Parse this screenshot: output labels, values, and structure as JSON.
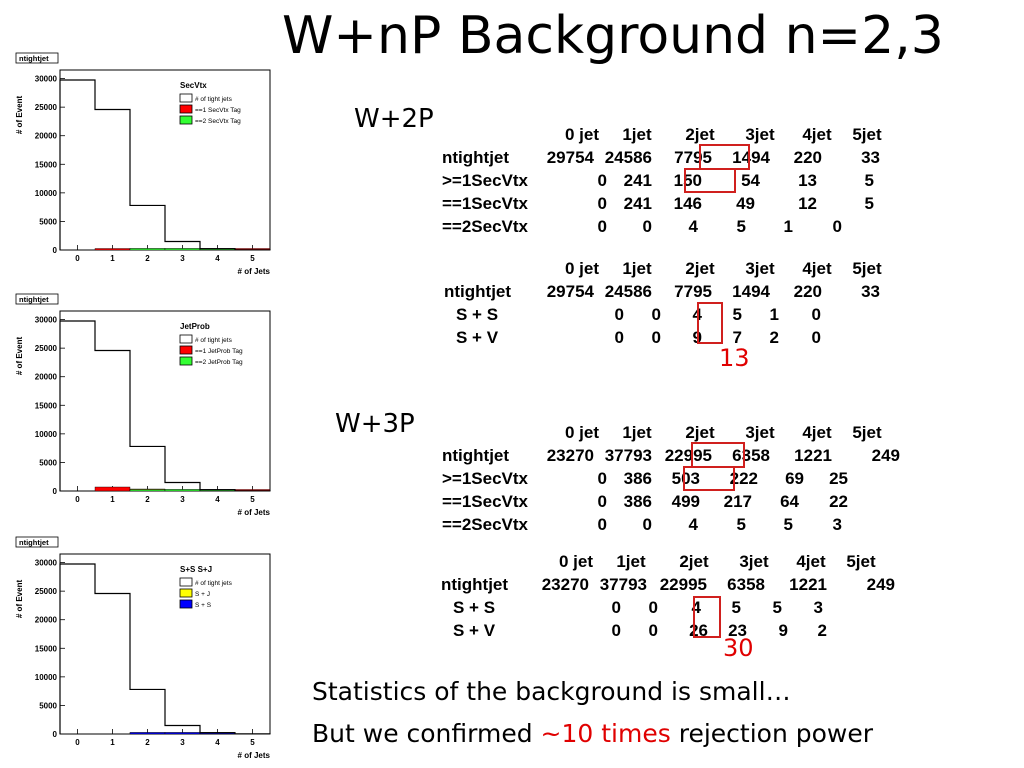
{
  "title": "W+nP Background n=2,3",
  "w2p": {
    "label": "W+2P",
    "table1": {
      "headers": [
        "0 jet",
        "1jet",
        "2jet",
        "3jet",
        "4jet",
        "5jet"
      ],
      "rows": [
        {
          "label": "ntightjet",
          "values": [
            "29754",
            "24586",
            "7795",
            "1494",
            "220",
            "33"
          ]
        },
        {
          "label": ">=1SecVtx",
          "values": [
            "0",
            "241",
            "150",
            "54",
            "13",
            "5"
          ]
        },
        {
          "label": "==1SecVtx",
          "values": [
            "0",
            "241",
            "146",
            "49",
            "12",
            "5"
          ]
        },
        {
          "label": "==2SecVtx",
          "values": [
            "0",
            "0",
            "4",
            "5",
            "1",
            "0"
          ]
        }
      ]
    },
    "table2": {
      "headers": [
        "0 jet",
        "1jet",
        "2jet",
        "3jet",
        "4jet",
        "5jet"
      ],
      "rows": [
        {
          "label": "ntightjet",
          "values": [
            "29754",
            "24586",
            "7795",
            "1494",
            "220",
            "33"
          ]
        },
        {
          "label": "S + S",
          "values": [
            "0",
            "0",
            "4",
            "5",
            "1",
            "0"
          ]
        },
        {
          "label": "S  + V",
          "values": [
            "0",
            "0",
            "9",
            "7",
            "2",
            "0"
          ]
        }
      ]
    },
    "sum_note": "13"
  },
  "w3p": {
    "label": "W+3P",
    "table1": {
      "headers": [
        "0 jet",
        "1jet",
        "2jet",
        "3jet",
        "4jet",
        "5jet"
      ],
      "rows": [
        {
          "label": "ntightjet",
          "values": [
            "23270",
            "37793",
            "22995",
            "6358",
            "1221",
            "249"
          ]
        },
        {
          "label": ">=1SecVtx",
          "values": [
            "0",
            "386",
            "503",
            "222",
            "69",
            "25"
          ]
        },
        {
          "label": "==1SecVtx",
          "values": [
            "0",
            "386",
            "499",
            "217",
            "64",
            "22"
          ]
        },
        {
          "label": "==2SecVtx",
          "values": [
            "0",
            "0",
            "4",
            "5",
            "5",
            "3"
          ]
        }
      ]
    },
    "table2": {
      "headers": [
        "0 jet",
        "1jet",
        "2jet",
        "3jet",
        "4jet",
        "5jet"
      ],
      "rows": [
        {
          "label": "ntightjet",
          "values": [
            "23270",
            "37793",
            "22995",
            "6358",
            "1221",
            "249"
          ]
        },
        {
          "label": "S + S",
          "values": [
            "0",
            "0",
            "4",
            "5",
            "5",
            "3"
          ]
        },
        {
          "label": "S  + V",
          "values": [
            "0",
            "0",
            "26",
            "23",
            "9",
            "2"
          ]
        }
      ]
    },
    "sum_note": "30"
  },
  "footer": {
    "line1": "Statistics of the background is small…",
    "line2_pre": "But we confirmed ",
    "line2_highlight": "~10 times",
    "line2_post": " rejection power"
  },
  "colors": {
    "highlight_red": "#e00000",
    "tag1_red": "#ff0000",
    "tag2_green": "#33ff33",
    "sj_yellow": "#ffff00",
    "ss_blue": "#0000ff"
  },
  "chart_data": [
    {
      "type": "bar",
      "hist_tag": "ntightjet",
      "legend_title": "SecVtx",
      "xlabel": "# of Jets",
      "ylabel": "# of Event",
      "categories": [
        "0",
        "1",
        "2",
        "3",
        "4",
        "5"
      ],
      "yticks": [
        "0",
        "5000",
        "10000",
        "15000",
        "20000",
        "25000",
        "30000"
      ],
      "ylim": [
        0,
        31500
      ],
      "series": [
        {
          "name": "# of tight jets",
          "values": [
            29754,
            24586,
            7795,
            1494,
            220,
            33
          ],
          "color": "#ffffff"
        },
        {
          "name": "==1 SecVtx Tag",
          "values": [
            0,
            241,
            146,
            49,
            12,
            5
          ],
          "color": "#ff0000"
        },
        {
          "name": "==2 SecVtx Tag",
          "values": [
            0,
            0,
            4,
            5,
            1,
            0
          ],
          "color": "#33ff33"
        }
      ]
    },
    {
      "type": "bar",
      "hist_tag": "ntightjet",
      "legend_title": "JetProb",
      "xlabel": "# of Jets",
      "ylabel": "# of Event",
      "categories": [
        "0",
        "1",
        "2",
        "3",
        "4",
        "5"
      ],
      "yticks": [
        "0",
        "5000",
        "10000",
        "15000",
        "20000",
        "25000",
        "30000"
      ],
      "ylim": [
        0,
        31500
      ],
      "series": [
        {
          "name": "# of tight jets",
          "values": [
            29754,
            24586,
            7795,
            1494,
            220,
            33
          ],
          "color": "#ffffff"
        },
        {
          "name": "==1 JetProb Tag",
          "values": [
            0,
            700,
            350,
            80,
            15,
            5
          ],
          "color": "#ff0000"
        },
        {
          "name": "==2 JetProb Tag",
          "values": [
            0,
            0,
            10,
            5,
            1,
            0
          ],
          "color": "#33ff33"
        }
      ]
    },
    {
      "type": "bar",
      "hist_tag": "ntightjet",
      "legend_title": "S+S S+J",
      "xlabel": "# of Jets",
      "ylabel": "# of Event",
      "categories": [
        "0",
        "1",
        "2",
        "3",
        "4",
        "5"
      ],
      "yticks": [
        "0",
        "5000",
        "10000",
        "15000",
        "20000",
        "25000",
        "30000"
      ],
      "ylim": [
        0,
        31500
      ],
      "series": [
        {
          "name": "# of tight jets",
          "values": [
            29754,
            24586,
            7795,
            1494,
            220,
            33
          ],
          "color": "#ffffff"
        },
        {
          "name": "S + J",
          "values": [
            0,
            0,
            9,
            7,
            2,
            0
          ],
          "color": "#ffff00"
        },
        {
          "name": "S + S",
          "values": [
            0,
            0,
            4,
            5,
            1,
            0
          ],
          "color": "#0000ff"
        }
      ]
    }
  ]
}
